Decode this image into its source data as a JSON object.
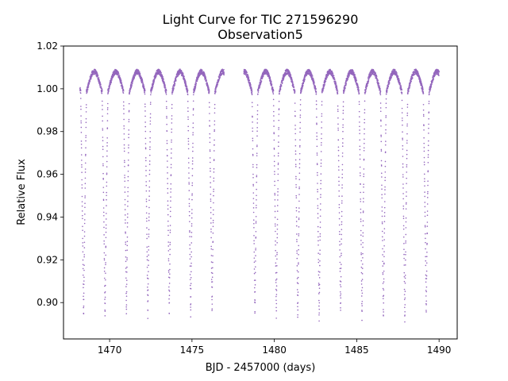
{
  "chart_data": {
    "type": "scatter",
    "title_line1": "Light Curve for TIC 271596290",
    "title_line2": "Observation5",
    "xlabel": "BJD - 2457000 (days)",
    "ylabel": "Relative Flux",
    "xlim": [
      1467.2,
      1491.1
    ],
    "ylim": [
      0.883,
      1.02
    ],
    "xticks": [
      1470,
      1475,
      1480,
      1485,
      1490
    ],
    "xtick_labels": [
      "1470",
      "1475",
      "1480",
      "1485",
      "1490"
    ],
    "yticks": [
      0.9,
      0.92,
      0.94,
      0.96,
      0.98,
      1.0,
      1.02
    ],
    "ytick_labels": [
      "0.90",
      "0.92",
      "0.94",
      "0.96",
      "0.98",
      "1.00",
      "1.02"
    ],
    "grid": false,
    "marker_color": "#9467bd",
    "series": [
      {
        "segments": [
          {
            "x_start": 1468.2,
            "x_end": 1476.95
          },
          {
            "x_start": 1478.15,
            "x_end": 1490.0
          }
        ],
        "period_days": 1.3,
        "first_eclipse_time": 1468.42,
        "eclipse_times": [
          1468.42,
          1469.72,
          1471.02,
          1472.32,
          1473.62,
          1474.92,
          1476.22,
          1478.82,
          1480.12,
          1481.42,
          1482.72,
          1484.02,
          1485.32,
          1486.62,
          1487.92,
          1489.22
        ],
        "eclipse_min_flux": [
          0.893,
          0.893,
          0.894,
          0.893,
          0.894,
          0.893,
          0.895,
          0.894,
          0.893,
          0.892,
          0.891,
          0.894,
          0.892,
          0.892,
          0.89,
          0.894
        ],
        "out_of_eclipse_max_flux": 1.008,
        "out_of_eclipse_min_flux": 0.995
      }
    ]
  }
}
